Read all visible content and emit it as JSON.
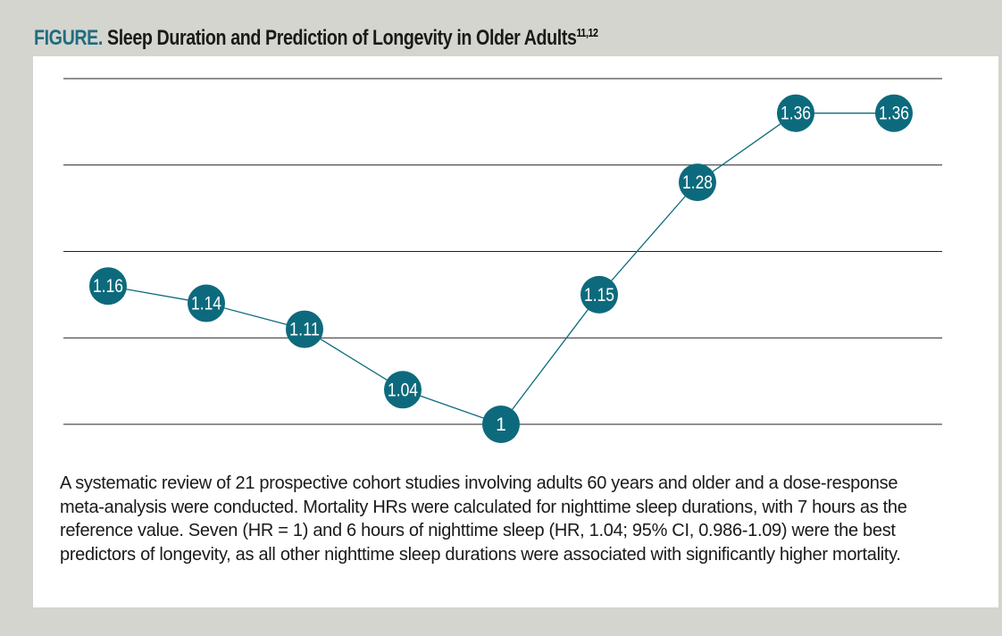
{
  "figure": {
    "label": "FIGURE.",
    "title": "Sleep Duration and Prediction of Longevity in Older Adults",
    "refs": "11,12"
  },
  "caption": "A systematic review of 21 prospective cohort studies involving adults 60 years and older and a dose-response meta-analysis were conducted. Mortality HRs were calculated for nighttime sleep durations, with 7 hours as the reference value. Seven (HR = 1) and 6 hours of nighttime sleep (HR, 1.04; 95% CI, 0.986-1.09) were the best predictors of longevity, as all other nighttime sleep durations were associated with significantly higher mortality.",
  "colors": {
    "marker": "#0d6a7d",
    "marker_text": "#ffffff",
    "line": "#0d6a7d",
    "grid": "#222222"
  },
  "chart_data": {
    "type": "line",
    "title": "Sleep Duration and Prediction of Longevity in Older Adults",
    "xlabel": "",
    "ylabel": "",
    "grid": true,
    "series": [
      {
        "values": [
          1.16,
          1.14,
          1.11,
          1.04,
          1,
          1.15,
          1.28,
          1.36,
          1.36
        ],
        "labels": [
          "1.16",
          "1.14",
          "1.11",
          "1.04",
          "1",
          "1.15",
          "1.28",
          "1.36",
          "1.36"
        ]
      }
    ],
    "ylim": [
      1.0,
      1.4
    ]
  }
}
